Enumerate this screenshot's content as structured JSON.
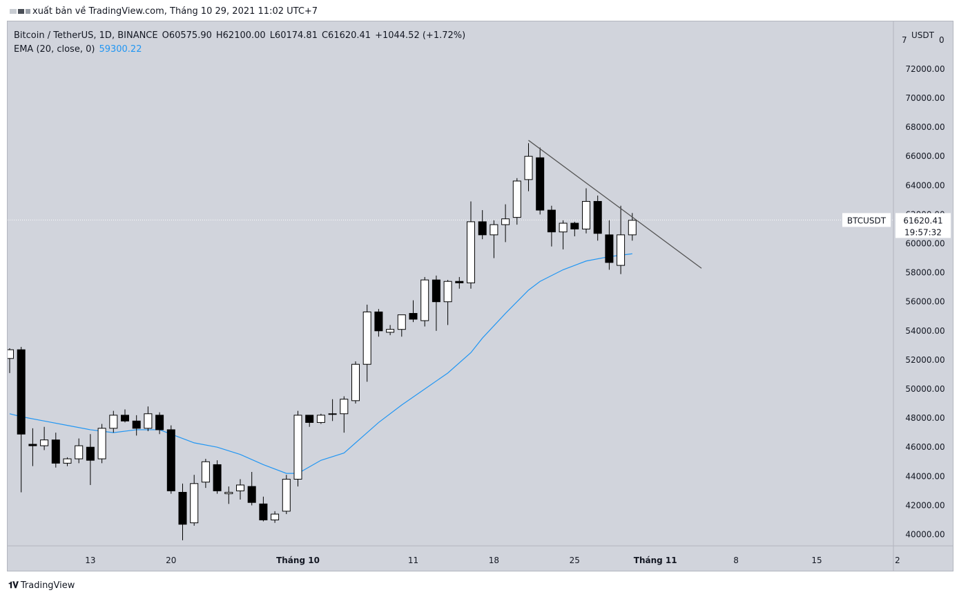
{
  "header": {
    "publish_text": "xuất bản về TradingView.com, Tháng 10 29, 2021 11:02 UTC+7"
  },
  "legend": {
    "symbol": "Bitcoin / TetherUS, 1D, BINANCE",
    "open": "O60575.90",
    "high": "H62100.00",
    "low": "L60174.81",
    "close": "C61620.41",
    "change": "+1044.52 (+1.72%)",
    "ema_label": "EMA (20, close, 0)",
    "ema_value": "59300.22"
  },
  "price_tag": {
    "symbol": "BTCUSDT",
    "price": "61620.41",
    "countdown": "19:57:32"
  },
  "footer": {
    "brand": "TradingView"
  },
  "colors": {
    "background": "#d1d4dc",
    "ema": "#2196f3",
    "up_body": "#ffffff",
    "down_body": "#000000",
    "trendline": "#555555"
  },
  "chart_data": {
    "type": "candlestick",
    "y_axis": {
      "unit": "USDT",
      "top_label": "7",
      "top_label_right": "0",
      "ticks": [
        "72000.00",
        "70000.00",
        "68000.00",
        "66000.00",
        "64000.00",
        "62000.00",
        "60000.00",
        "58000.00",
        "56000.00",
        "54000.00",
        "52000.00",
        "50000.00",
        "48000.00",
        "46000.00",
        "44000.00",
        "42000.00",
        "40000.00"
      ],
      "range": [
        39000,
        73000
      ]
    },
    "x_axis": {
      "ticks": [
        {
          "label": "13",
          "index": 7,
          "bold": false
        },
        {
          "label": "20",
          "index": 14,
          "bold": false
        },
        {
          "label": "Tháng 10",
          "index": 25,
          "bold": true
        },
        {
          "label": "11",
          "index": 35,
          "bold": false
        },
        {
          "label": "18",
          "index": 42,
          "bold": false
        },
        {
          "label": "25",
          "index": 49,
          "bold": false
        },
        {
          "label": "Tháng 11",
          "index": 56,
          "bold": true
        },
        {
          "label": "8",
          "index": 63,
          "bold": false
        },
        {
          "label": "15",
          "index": 70,
          "bold": false
        },
        {
          "label": "2",
          "index": 77,
          "bold": false
        }
      ]
    },
    "candles": [
      [
        52100,
        52800,
        51100,
        52700
      ],
      [
        52700,
        52900,
        42900,
        46900
      ],
      [
        46200,
        47300,
        44700,
        46100
      ],
      [
        46100,
        47400,
        45800,
        46500
      ],
      [
        46500,
        47000,
        44600,
        44900
      ],
      [
        44900,
        45300,
        44700,
        45200
      ],
      [
        45200,
        46600,
        44900,
        46100
      ],
      [
        46000,
        46900,
        43400,
        45100
      ],
      [
        45200,
        47600,
        44900,
        47300
      ],
      [
        47300,
        48500,
        47000,
        48200
      ],
      [
        48200,
        48600,
        47700,
        47800
      ],
      [
        47800,
        48200,
        46800,
        47300
      ],
      [
        47300,
        48800,
        47100,
        48300
      ],
      [
        48200,
        48400,
        46900,
        47200
      ],
      [
        47200,
        47500,
        42800,
        43000
      ],
      [
        42900,
        43500,
        39600,
        40700
      ],
      [
        40800,
        44100,
        40600,
        43500
      ],
      [
        43600,
        45200,
        43200,
        45000
      ],
      [
        44800,
        45100,
        42800,
        43000
      ],
      [
        42800,
        43300,
        42100,
        42900
      ],
      [
        43000,
        43800,
        42400,
        43400
      ],
      [
        43300,
        44300,
        42000,
        42200
      ],
      [
        42100,
        42600,
        40900,
        41000
      ],
      [
        41000,
        41600,
        40800,
        41400
      ],
      [
        41600,
        44100,
        41400,
        43800
      ],
      [
        43800,
        48500,
        43300,
        48200
      ],
      [
        48200,
        48200,
        47400,
        47700
      ],
      [
        47700,
        48300,
        47600,
        48200
      ],
      [
        48300,
        49300,
        47800,
        48300
      ],
      [
        48300,
        49500,
        47000,
        49300
      ],
      [
        49200,
        51900,
        49000,
        51700
      ],
      [
        51700,
        55800,
        50500,
        55300
      ],
      [
        55300,
        55500,
        53600,
        54000
      ],
      [
        53900,
        54400,
        53700,
        54100
      ],
      [
        54100,
        55000,
        53600,
        55100
      ],
      [
        55200,
        56100,
        54600,
        54800
      ],
      [
        54700,
        57700,
        54300,
        57500
      ],
      [
        57500,
        57800,
        54000,
        56000
      ],
      [
        56000,
        57500,
        54400,
        57400
      ],
      [
        57400,
        57700,
        56900,
        57300
      ],
      [
        57300,
        62900,
        56900,
        61500
      ],
      [
        61500,
        62300,
        60300,
        60600
      ],
      [
        60600,
        61600,
        59000,
        61300
      ],
      [
        61300,
        62700,
        60100,
        61700
      ],
      [
        61800,
        64500,
        61300,
        64300
      ],
      [
        64400,
        66900,
        63600,
        66000
      ],
      [
        65900,
        66600,
        62000,
        62300
      ],
      [
        62300,
        62600,
        59800,
        60800
      ],
      [
        60800,
        61600,
        59600,
        61400
      ],
      [
        61400,
        61500,
        60500,
        61000
      ],
      [
        61000,
        63800,
        60700,
        62900
      ],
      [
        62900,
        63300,
        60200,
        60700
      ],
      [
        60600,
        61600,
        58200,
        58700
      ],
      [
        58500,
        62600,
        57900,
        60600
      ],
      [
        60600,
        62100,
        60200,
        61600
      ]
    ],
    "ema": [
      [
        0,
        48300
      ],
      [
        1,
        48100
      ],
      [
        3,
        47800
      ],
      [
        5,
        47500
      ],
      [
        7,
        47200
      ],
      [
        9,
        47000
      ],
      [
        11,
        47200
      ],
      [
        13,
        47200
      ],
      [
        14,
        46900
      ],
      [
        16,
        46300
      ],
      [
        18,
        46000
      ],
      [
        20,
        45500
      ],
      [
        22,
        44800
      ],
      [
        24,
        44200
      ],
      [
        25,
        44200
      ],
      [
        27,
        45100
      ],
      [
        29,
        45600
      ],
      [
        30,
        46300
      ],
      [
        32,
        47700
      ],
      [
        34,
        48900
      ],
      [
        36,
        50000
      ],
      [
        38,
        51100
      ],
      [
        40,
        52500
      ],
      [
        41,
        53500
      ],
      [
        43,
        55200
      ],
      [
        44,
        56000
      ],
      [
        45,
        56800
      ],
      [
        46,
        57400
      ],
      [
        48,
        58200
      ],
      [
        50,
        58800
      ],
      [
        52,
        59100
      ],
      [
        54,
        59300
      ]
    ],
    "trendline": [
      [
        45,
        67100
      ],
      [
        60,
        58300
      ]
    ],
    "last_price": 61620.41
  }
}
